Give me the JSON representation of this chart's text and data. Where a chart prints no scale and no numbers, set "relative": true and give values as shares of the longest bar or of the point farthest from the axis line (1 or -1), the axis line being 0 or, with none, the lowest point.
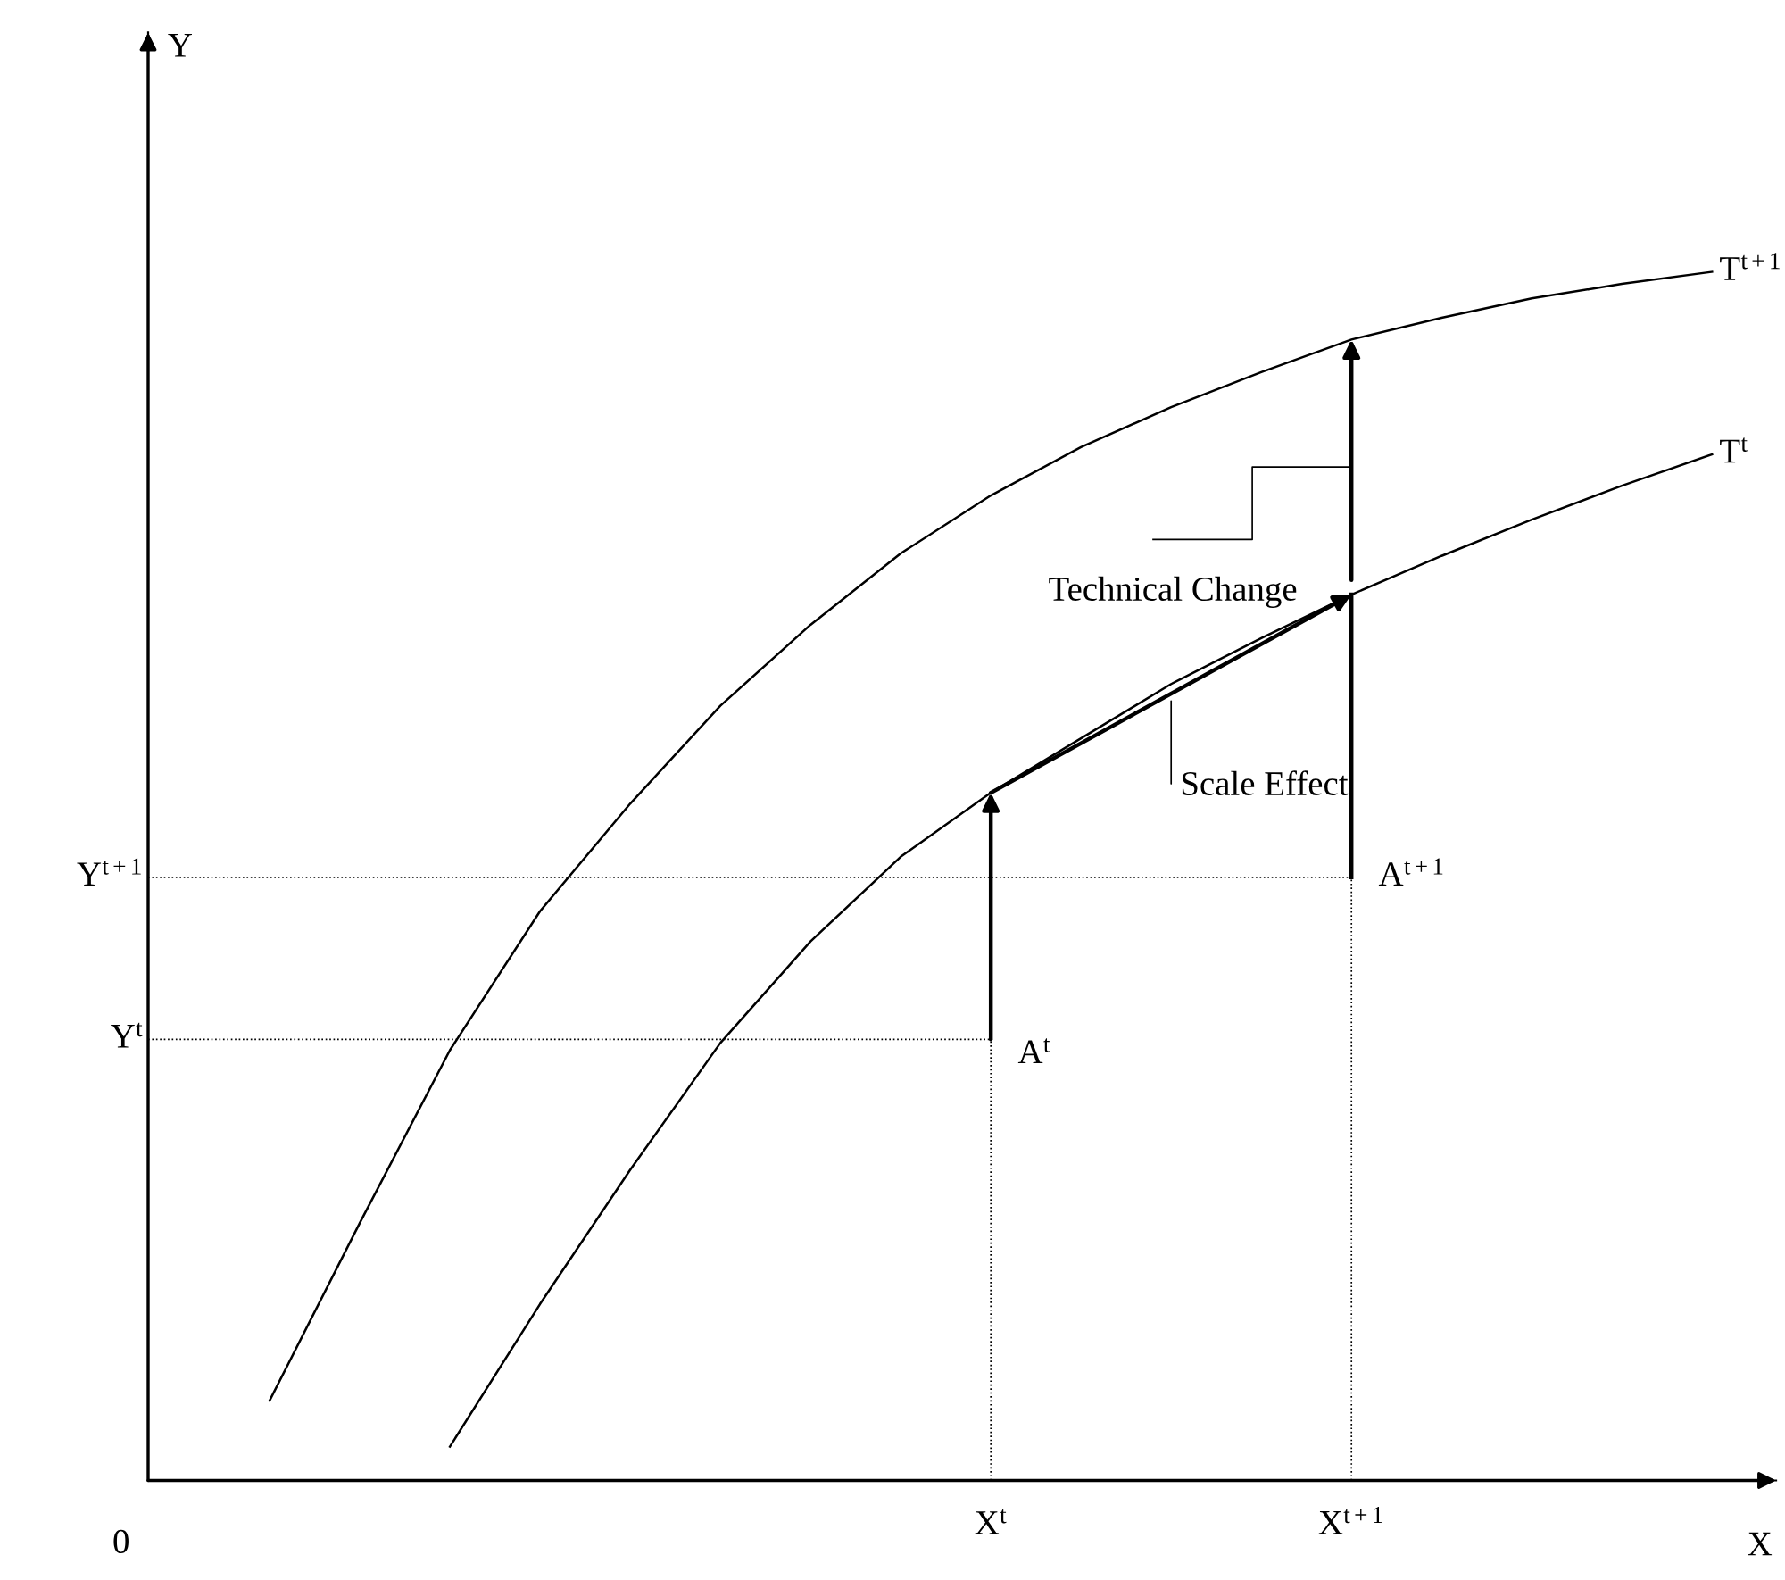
{
  "chart_data": {
    "type": "line",
    "relative": true,
    "xlabel": "X",
    "grid": false,
    "legend": false,
    "marker": "none",
    "line_style": "solid",
    "categories": [
      null,
      null,
      null,
      null,
      null,
      null,
      null,
      null,
      null,
      "X$^{t}$",
      null,
      null,
      null,
      "X$^{t+1}$",
      null,
      null,
      null,
      null
    ],
    "series": [
      {
        "name": "T$^{t+1}$",
        "color": "#000000",
        "values": [
          null,
          0.066,
          0.213,
          0.356,
          0.471,
          0.56,
          0.641,
          0.708,
          0.767,
          0.815,
          0.855,
          0.888,
          0.917,
          0.944,
          0.962,
          0.978,
          0.99,
          1.0
        ]
      },
      {
        "name": "T$^{t}$",
        "color": "#000000",
        "values": [
          null,
          null,
          null,
          0.028,
          0.146,
          0.257,
          0.362,
          0.446,
          0.516,
          0.569,
          0.614,
          0.659,
          0.697,
          0.733,
          0.765,
          0.795,
          0.823,
          0.849
        ]
      }
    ],
    "ref_lines": [
      {
        "axis": "y",
        "value": 0.365,
        "label": "Y$^{t}$",
        "line_style": "dotted"
      },
      {
        "axis": "y",
        "value": 0.499,
        "label": "Y$^{t+1}$",
        "line_style": "dotted"
      }
    ],
    "annotations": [
      "A$^{t}$",
      "A$^{t+1}$",
      "Scale Effect",
      "Technical Change",
      "0",
      "Y"
    ]
  }
}
